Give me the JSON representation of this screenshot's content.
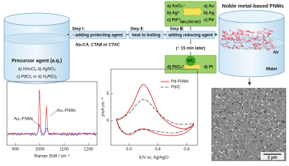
{
  "precursor": {
    "title": "Precursor agent (a.q.)",
    "line1": "a) HAuCl₄ b) AgNO₃",
    "line2": "c) PdCl₂ or d) H₂PtCl₆"
  },
  "steps": [
    {
      "label": "Step Ⅰ:",
      "action": "- adding protecting agent",
      "note": "Na₃CA, CTAB or CTAC"
    },
    {
      "label": "Step Ⅱ:",
      "action": "heat to boiling"
    },
    {
      "label": "Step Ⅲ:",
      "action": "adding reducing agent",
      "note": "(~ 15 min later)"
    }
  ],
  "reduction_top": {
    "inputs": [
      "a) AuCl₄⁻",
      "b) Ag⁺",
      "c) Pd²⁺"
    ],
    "reagent": "NH₂OH·HCl",
    "outputs": [
      "a) Au",
      "b) Ag",
      "c) Pd"
    ]
  },
  "reduction_bottom": {
    "input": "d) PtCl₆²⁻",
    "reagent": "VC",
    "output": "d) Pt"
  },
  "product": {
    "title": "Noble metal-based FNMs",
    "air": "Air",
    "water": "Water"
  },
  "raman": {
    "xlabel": "Raman Shift / cm⁻¹",
    "xlim": [
      865,
      1235
    ],
    "xticks": [
      900,
      1000,
      1100,
      1200
    ],
    "labels": [
      "Au₂-FNMs",
      "Au₁-FNMs"
    ]
  },
  "cv": {
    "xlabel": "E/V vs. Ag/AgCl",
    "ylabel": "j/mA cm⁻²",
    "xlim": [
      -0.25,
      0.95
    ],
    "ylim": [
      -4.5,
      9.5
    ],
    "xticks": [
      {
        "value": 0,
        "label": "0.0"
      },
      {
        "value": 0.4,
        "label": "0.4"
      },
      {
        "value": 0.8,
        "label": "0.8"
      }
    ],
    "yticks": [
      0,
      5
    ],
    "legend": [
      "Pd-FNMs",
      "Pd/C"
    ]
  },
  "sem": {
    "scale": "2 μm"
  }
}
